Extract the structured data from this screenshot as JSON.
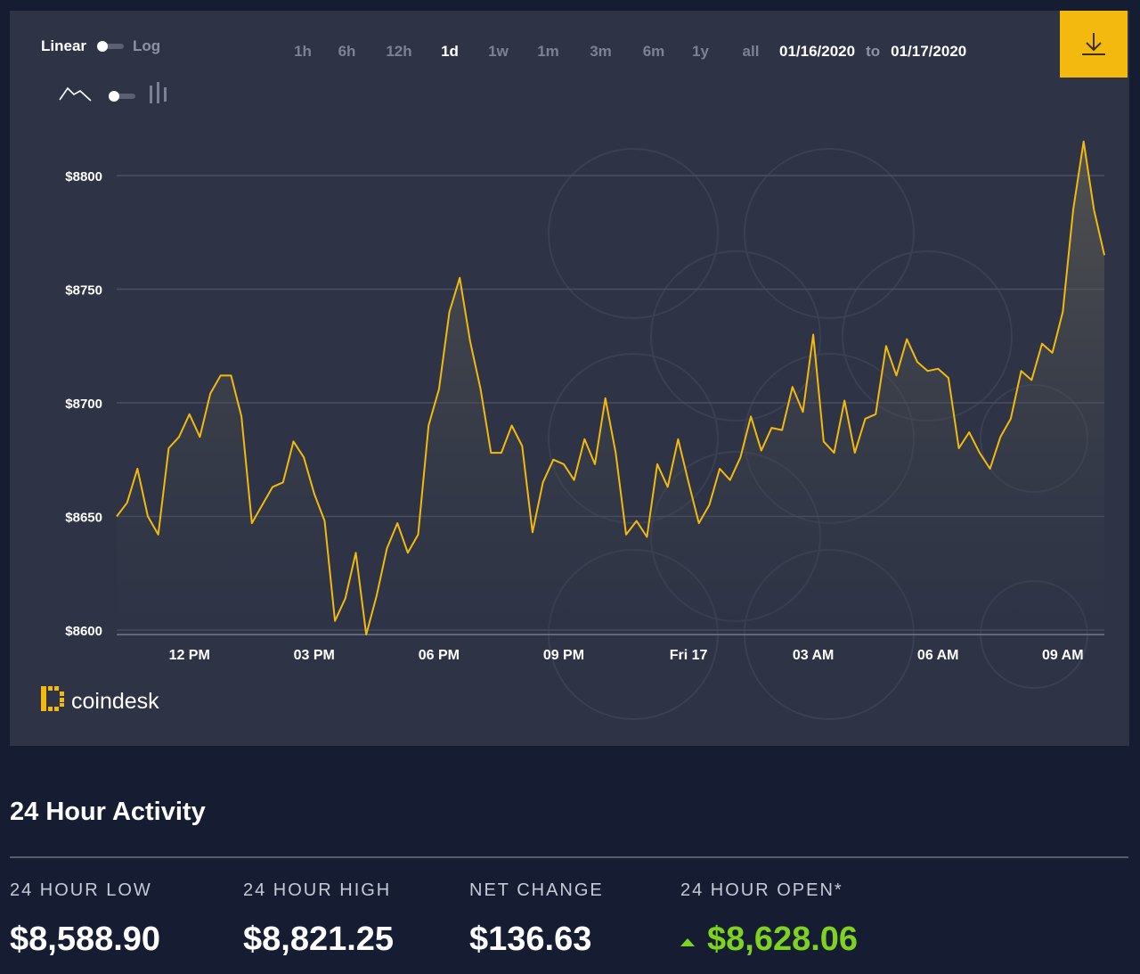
{
  "controls": {
    "scale_linear": "Linear",
    "scale_log": "Log",
    "scale_selected": "Linear",
    "chart_style_selected": "line",
    "ranges": [
      "1h",
      "6h",
      "12h",
      "1d",
      "1w",
      "1m",
      "3m",
      "6m",
      "1y",
      "all"
    ],
    "active_range": "1d",
    "date_from": "01/16/2020",
    "date_to_label": "to",
    "date_to": "01/17/2020"
  },
  "brand": {
    "name": "coindesk"
  },
  "icons": {
    "download": "download-icon",
    "line_chart": "line-chart-icon",
    "candle_chart": "candlestick-icon",
    "logo": "coindesk-logo-icon"
  },
  "colors": {
    "page_bg": "#161d33",
    "panel_bg": "#2e3446",
    "accent": "#f4b90e",
    "positive": "#7ed321"
  },
  "chart_data": {
    "type": "line",
    "title": "",
    "xlabel": "",
    "ylabel": "",
    "ylim": [
      8600,
      8840
    ],
    "yticks": [
      8600,
      8650,
      8700,
      8750,
      8800
    ],
    "ytick_labels": [
      "$8600",
      "$8650",
      "$8700",
      "$8750",
      "$8800"
    ],
    "xtick_labels": [
      "12 PM",
      "03 PM",
      "06 PM",
      "09 PM",
      "Fri 17",
      "03 AM",
      "06 AM",
      "09 AM"
    ],
    "xtick_hours": [
      1,
      4,
      7,
      10,
      13,
      16,
      19,
      22
    ],
    "x_hours": [
      0,
      0.25,
      0.5,
      0.75,
      1,
      1.25,
      1.5,
      1.75,
      2,
      2.25,
      2.5,
      2.75,
      3,
      3.25,
      3.5,
      3.75,
      4,
      4.25,
      4.5,
      4.75,
      5,
      5.25,
      5.5,
      5.75,
      6,
      6.25,
      6.5,
      6.75,
      7,
      7.25,
      7.5,
      7.75,
      8,
      8.25,
      8.5,
      8.75,
      9,
      9.25,
      9.5,
      9.75,
      10,
      10.25,
      10.5,
      10.75,
      11,
      11.25,
      11.5,
      11.75,
      12,
      12.25,
      12.5,
      12.75,
      13,
      13.25,
      13.5,
      13.75,
      14,
      14.25,
      14.5,
      14.75,
      15,
      15.25,
      15.5,
      15.75,
      16,
      16.25,
      16.5,
      16.75,
      17,
      17.25,
      17.5,
      17.75,
      18,
      18.25,
      18.5,
      18.75,
      19,
      19.25,
      19.5,
      19.75,
      20,
      20.25,
      20.5,
      20.75,
      21,
      21.25,
      21.5,
      21.75,
      22,
      22.25,
      22.5,
      22.75,
      23,
      23.25,
      23.5,
      23.75
    ],
    "values": [
      8650,
      8656,
      8671,
      8650,
      8642,
      8680,
      8685,
      8695,
      8685,
      8704,
      8712,
      8712,
      8694,
      8647,
      8655,
      8663,
      8665,
      8683,
      8676,
      8660,
      8648,
      8604,
      8614,
      8634,
      8598,
      8615,
      8636,
      8647,
      8634,
      8642,
      8690,
      8706,
      8740,
      8755,
      8727,
      8706,
      8678,
      8678,
      8690,
      8681,
      8643,
      8665,
      8675,
      8673,
      8666,
      8684,
      8673,
      8702,
      8678,
      8642,
      8648,
      8641,
      8673,
      8663,
      8684,
      8665,
      8647,
      8655,
      8671,
      8666,
      8676,
      8694,
      8679,
      8689,
      8688,
      8707,
      8696,
      8730,
      8683,
      8678,
      8701,
      8678,
      8693,
      8695,
      8725,
      8712,
      8728,
      8718,
      8714,
      8715,
      8711,
      8680,
      8687,
      8678,
      8671,
      8685,
      8693,
      8714,
      8710,
      8726,
      8722,
      8740,
      8785,
      8815,
      8785,
      8765
    ],
    "series_color": "#f4b90e",
    "grid": true,
    "legend": "none"
  },
  "activity": {
    "title": "24 Hour Activity",
    "low_label": "24 HOUR LOW",
    "low_value": "$8,588.90",
    "high_label": "24 HOUR HIGH",
    "high_value": "$8,821.25",
    "change_label": "NET CHANGE",
    "change_value": "$136.63",
    "open_label": "24 HOUR OPEN*",
    "open_value": "$8,628.06"
  }
}
